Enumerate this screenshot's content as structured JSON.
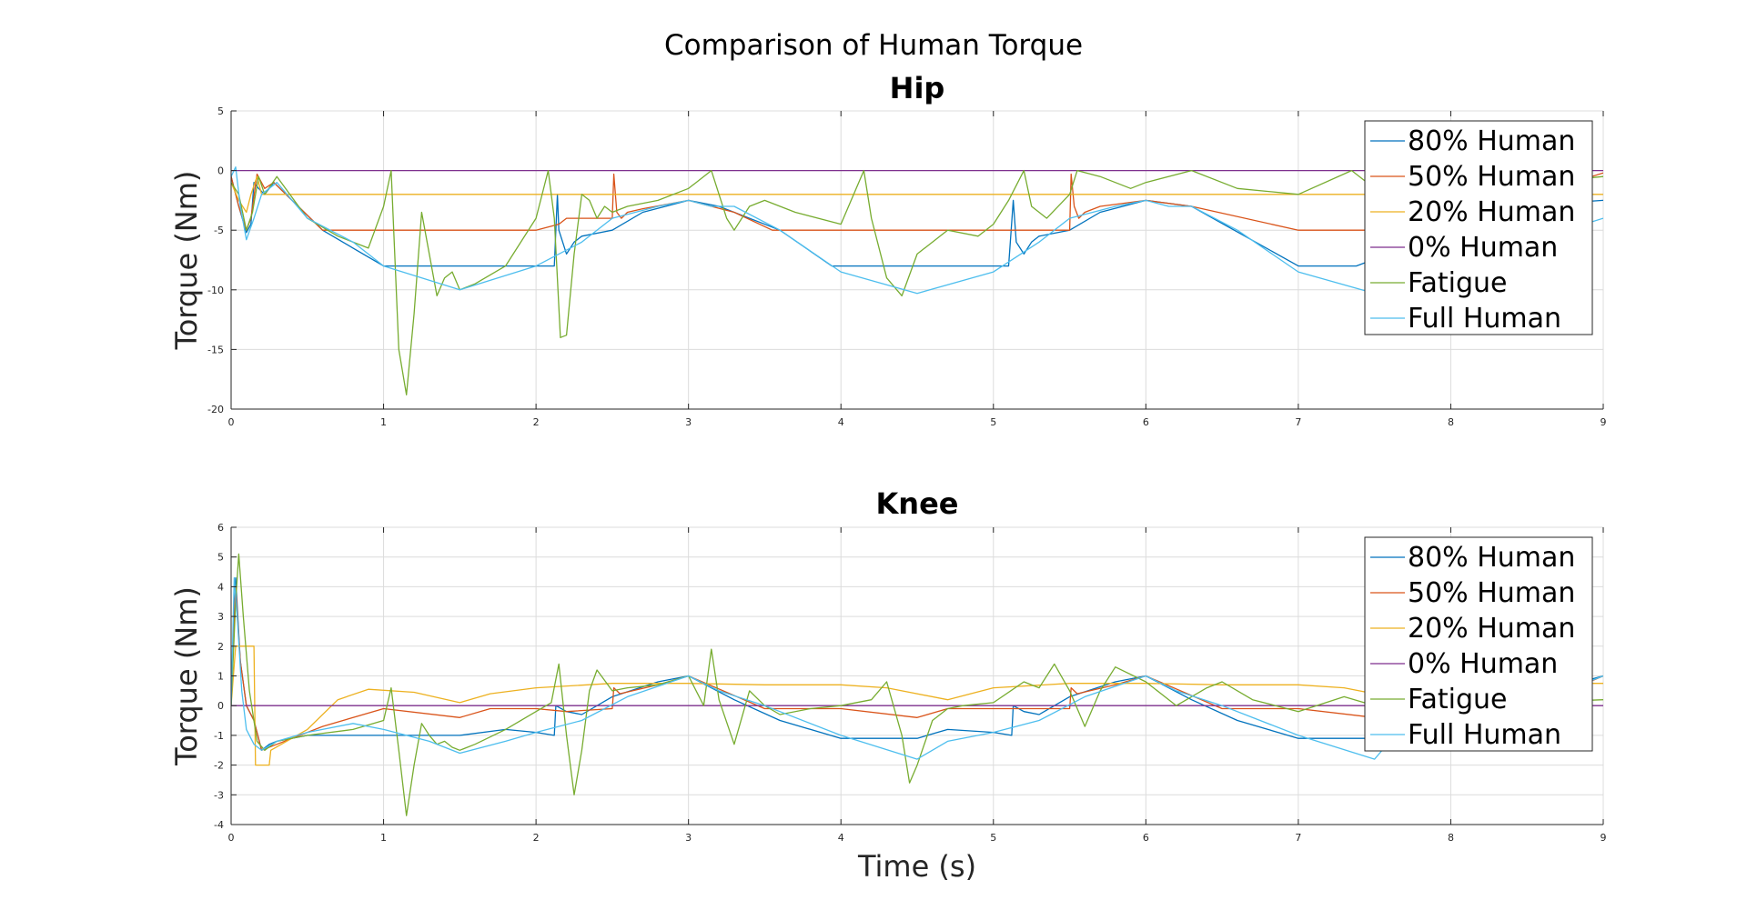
{
  "figure": {
    "suptitle": "Comparison of Human Torque",
    "colors": {
      "80% Human": "#0072BD",
      "50% Human": "#D95319",
      "20% Human": "#EDB120",
      "0% Human": "#7E2F8E",
      "Fatigue": "#77AC30",
      "Full Human": "#4DBEEE"
    }
  },
  "chart_data": [
    {
      "type": "line",
      "title": "Hip",
      "xlabel": "",
      "ylabel": "Torque (Nm)",
      "xlim": [
        0,
        9
      ],
      "ylim": [
        -20,
        5
      ],
      "xticks": [
        0,
        1,
        2,
        3,
        4,
        5,
        6,
        7,
        8,
        9
      ],
      "yticks": [
        -20,
        -15,
        -10,
        -5,
        0,
        5
      ],
      "grid": true,
      "legend_position": "top-right",
      "series": [
        {
          "name": "80% Human",
          "x": [
            0,
            0.05,
            0.1,
            0.13,
            0.15,
            0.18,
            0.22,
            0.28,
            0.4,
            0.6,
            0.8,
            1.0,
            1.5,
            2.0,
            2.12,
            2.14,
            2.15,
            2.2,
            2.25,
            2.3,
            2.5,
            2.7,
            3.0,
            3.2,
            3.6,
            3.94,
            4.5,
            5.1,
            5.13,
            5.15,
            5.2,
            5.25,
            5.3,
            5.5,
            5.7,
            6.0,
            6.3,
            7.0,
            7.38,
            8.0,
            8.4,
            9.0
          ],
          "y": [
            -0.5,
            -3,
            -5.2,
            -4.5,
            -1,
            -1.5,
            -2,
            -1,
            -2.5,
            -5,
            -6.5,
            -8,
            -8,
            -8,
            -8,
            -2,
            -5,
            -7,
            -6,
            -5.5,
            -5,
            -3.5,
            -2.5,
            -3,
            -5,
            -8,
            -8,
            -8,
            -2.5,
            -6,
            -7,
            -6,
            -5.5,
            -5,
            -3.5,
            -2.5,
            -3,
            -8,
            -8,
            -5,
            -3,
            -2.5
          ]
        },
        {
          "name": "50% Human",
          "x": [
            0,
            0.05,
            0.1,
            0.13,
            0.17,
            0.22,
            0.28,
            0.4,
            0.6,
            1.0,
            2.0,
            2.15,
            2.2,
            2.3,
            2.5,
            2.51,
            2.53,
            2.56,
            2.6,
            2.7,
            3.0,
            3.3,
            3.55,
            4.5,
            5.5,
            5.51,
            5.53,
            5.56,
            5.6,
            5.7,
            6.0,
            6.3,
            7.0,
            8.0,
            8.3,
            9.0
          ],
          "y": [
            -0.5,
            -3,
            -5,
            -4,
            -0.3,
            -1.5,
            -1,
            -2.5,
            -5,
            -5,
            -5,
            -4.5,
            -4,
            -4,
            -4,
            -0.3,
            -3.5,
            -4,
            -3.5,
            -3.2,
            -2.5,
            -3.5,
            -5,
            -5,
            -5,
            -0.3,
            -3,
            -4,
            -3.5,
            -3,
            -2.5,
            -3,
            -5,
            -5,
            -3,
            -0.2
          ]
        },
        {
          "name": "20% Human",
          "x": [
            0,
            0.05,
            0.1,
            0.13,
            0.17,
            0.2,
            0.3,
            9.0
          ],
          "y": [
            -1,
            -2.5,
            -3.5,
            -2,
            -0.5,
            -2,
            -2,
            -2
          ]
        },
        {
          "name": "0% Human",
          "x": [
            0,
            9.0
          ],
          "y": [
            0,
            0
          ]
        },
        {
          "name": "Fatigue",
          "x": [
            0,
            0.05,
            0.1,
            0.14,
            0.18,
            0.22,
            0.3,
            0.5,
            0.7,
            0.9,
            1.0,
            1.05,
            1.1,
            1.15,
            1.2,
            1.25,
            1.3,
            1.35,
            1.4,
            1.45,
            1.5,
            1.6,
            1.8,
            2.0,
            2.08,
            2.12,
            2.16,
            2.2,
            2.25,
            2.3,
            2.35,
            2.4,
            2.45,
            2.5,
            2.6,
            2.8,
            3.0,
            3.15,
            3.25,
            3.3,
            3.4,
            3.5,
            3.7,
            4.0,
            4.15,
            4.2,
            4.3,
            4.4,
            4.5,
            4.7,
            4.9,
            5.0,
            5.1,
            5.2,
            5.25,
            5.35,
            5.5,
            5.55,
            5.7,
            5.9,
            6.0,
            6.3,
            6.6,
            7.0,
            7.35,
            7.5,
            7.8,
            8.0,
            8.3,
            8.6,
            9.0
          ],
          "y": [
            -1,
            -2,
            -5,
            -3.5,
            -0.5,
            -2,
            -0.5,
            -4,
            -5.5,
            -6.5,
            -3,
            0,
            -15,
            -18.8,
            -12,
            -3.5,
            -7,
            -10.5,
            -9,
            -8.5,
            -10,
            -9.5,
            -8,
            -4,
            0,
            -4,
            -14,
            -13.8,
            -7,
            -2,
            -2.5,
            -4,
            -3,
            -3.5,
            -3,
            -2.5,
            -1.5,
            0,
            -4,
            -5,
            -3,
            -2.5,
            -3.5,
            -4.5,
            0,
            -4,
            -9,
            -10.5,
            -7,
            -5,
            -5.5,
            -4.5,
            -2.5,
            0,
            -3,
            -4,
            -2,
            0,
            -0.5,
            -1.5,
            -1,
            0,
            -1.5,
            -2,
            0,
            -1.5,
            -2,
            -1,
            -0.5,
            -1,
            -0.5
          ]
        },
        {
          "name": "Full Human",
          "x": [
            0,
            0.03,
            0.06,
            0.1,
            0.15,
            0.2,
            0.3,
            0.5,
            0.8,
            1.0,
            1.5,
            2.0,
            2.3,
            2.5,
            2.8,
            3.0,
            3.15,
            3.3,
            3.6,
            4.0,
            4.5,
            5.0,
            5.3,
            5.5,
            5.8,
            6.0,
            6.15,
            6.3,
            6.6,
            7.0,
            7.5,
            8.0,
            8.5,
            9.0
          ],
          "y": [
            -0.5,
            0.3,
            -3,
            -5.8,
            -4,
            -2,
            -1,
            -4,
            -6,
            -8,
            -10,
            -8,
            -6,
            -4,
            -3,
            -2.5,
            -3,
            -3,
            -5,
            -8.5,
            -10.3,
            -8.5,
            -6,
            -4,
            -3,
            -2.5,
            -3,
            -3,
            -5,
            -8.5,
            -10.3,
            -8.5,
            -6,
            -4
          ]
        }
      ]
    },
    {
      "type": "line",
      "title": "Knee",
      "xlabel": "Time (s)",
      "ylabel": "Torque (Nm)",
      "xlim": [
        0,
        9
      ],
      "ylim": [
        -4,
        6
      ],
      "xticks": [
        0,
        1,
        2,
        3,
        4,
        5,
        6,
        7,
        8,
        9
      ],
      "yticks": [
        -4,
        -3,
        -2,
        -1,
        0,
        1,
        2,
        3,
        4,
        5,
        6
      ],
      "grid": true,
      "legend_position": "top-right",
      "series": [
        {
          "name": "80% Human",
          "x": [
            0,
            0.03,
            0.06,
            0.1,
            0.15,
            0.2,
            0.25,
            0.3,
            0.5,
            1.0,
            1.5,
            1.8,
            2.0,
            2.12,
            2.13,
            2.2,
            2.3,
            2.5,
            2.8,
            3.0,
            3.3,
            3.6,
            4.0,
            4.5,
            4.7,
            5.0,
            5.12,
            5.13,
            5.2,
            5.3,
            5.5,
            5.8,
            6.0,
            6.3,
            6.6,
            7.0,
            7.5,
            8.0,
            8.5,
            9.0
          ],
          "y": [
            0,
            4.3,
            1.5,
            0,
            -0.5,
            -1.5,
            -1.3,
            -1.2,
            -1,
            -1,
            -1,
            -0.8,
            -0.9,
            -1,
            0,
            -0.2,
            -0.3,
            0.3,
            0.8,
            1,
            0.2,
            -0.5,
            -1.1,
            -1.1,
            -0.8,
            -0.9,
            -1,
            0,
            -0.2,
            -0.3,
            0.3,
            0.8,
            1,
            0.2,
            -0.5,
            -1.1,
            -1.1,
            -0.8,
            0.3,
            1
          ]
        },
        {
          "name": "50% Human",
          "x": [
            0,
            0.03,
            0.06,
            0.1,
            0.15,
            0.2,
            0.3,
            0.6,
            1.0,
            1.5,
            1.7,
            2.0,
            2.2,
            2.5,
            2.51,
            2.55,
            2.8,
            3.0,
            3.5,
            4.0,
            4.5,
            4.7,
            5.0,
            5.5,
            5.51,
            5.55,
            5.8,
            6.0,
            6.5,
            7.0,
            7.5,
            8.0,
            8.5,
            9.0
          ],
          "y": [
            0,
            4,
            1.5,
            0,
            -0.5,
            -1.5,
            -1.3,
            -0.7,
            -0.1,
            -0.4,
            -0.1,
            -0.1,
            -0.2,
            -0.1,
            0.6,
            0.4,
            0.7,
            1,
            -0.1,
            -0.1,
            -0.4,
            -0.1,
            -0.1,
            -0.1,
            0.6,
            0.4,
            0.7,
            1,
            -0.1,
            -0.1,
            -0.4,
            -0.1,
            -0.1,
            1
          ]
        },
        {
          "name": "20% Human",
          "x": [
            0,
            0.03,
            0.05,
            0.15,
            0.16,
            0.25,
            0.26,
            0.5,
            0.7,
            0.9,
            1.2,
            1.5,
            1.7,
            2.0,
            2.5,
            3.0,
            3.5,
            4.0,
            4.3,
            4.7,
            5.0,
            5.5,
            6.0,
            6.5,
            7.0,
            7.3,
            7.7,
            8.0,
            8.5,
            9.0
          ],
          "y": [
            0,
            2,
            2,
            2,
            -2,
            -2,
            -1.5,
            -0.8,
            0.2,
            0.55,
            0.45,
            0.1,
            0.4,
            0.6,
            0.75,
            0.75,
            0.7,
            0.7,
            0.6,
            0.2,
            0.6,
            0.75,
            0.75,
            0.7,
            0.7,
            0.6,
            0.2,
            0.6,
            0.75,
            0.75
          ]
        },
        {
          "name": "0% Human",
          "x": [
            0,
            9.0
          ],
          "y": [
            0,
            0
          ]
        },
        {
          "name": "Fatigue",
          "x": [
            0,
            0.03,
            0.05,
            0.08,
            0.12,
            0.17,
            0.22,
            0.3,
            0.5,
            0.8,
            1.0,
            1.05,
            1.1,
            1.15,
            1.2,
            1.25,
            1.3,
            1.35,
            1.4,
            1.45,
            1.5,
            1.6,
            1.8,
            2.0,
            2.1,
            2.15,
            2.2,
            2.25,
            2.3,
            2.35,
            2.4,
            2.5,
            2.6,
            2.8,
            3.0,
            3.1,
            3.15,
            3.2,
            3.3,
            3.4,
            3.5,
            3.6,
            3.8,
            4.0,
            4.2,
            4.3,
            4.4,
            4.45,
            4.5,
            4.6,
            4.7,
            4.8,
            5.0,
            5.2,
            5.3,
            5.4,
            5.5,
            5.6,
            5.7,
            5.8,
            6.0,
            6.2,
            6.4,
            6.5,
            6.7,
            7.0,
            7.3,
            7.5,
            7.7,
            8.0,
            8.3,
            8.5,
            9.0
          ],
          "y": [
            0,
            3.5,
            5.1,
            3,
            0.5,
            -1.2,
            -1.5,
            -1.2,
            -1,
            -0.8,
            -0.5,
            0.6,
            -1.5,
            -3.7,
            -2,
            -0.6,
            -1,
            -1.3,
            -1.2,
            -1.4,
            -1.5,
            -1.3,
            -0.8,
            -0.2,
            0.1,
            1.4,
            -1,
            -3,
            -1.5,
            0.5,
            1.2,
            0.5,
            0.6,
            0.7,
            1,
            0,
            1.9,
            0.2,
            -1.3,
            0.5,
            0,
            -0.3,
            -0.1,
            0,
            0.2,
            0.8,
            -1,
            -2.6,
            -2,
            -0.5,
            -0.1,
            0,
            0.1,
            0.8,
            0.6,
            1.4,
            0.5,
            -0.7,
            0.5,
            1.3,
            0.8,
            0,
            0.6,
            0.8,
            0.2,
            -0.2,
            0.3,
            0,
            0.2,
            0.5,
            0.3,
            0.1,
            0.2
          ]
        },
        {
          "name": "Full Human",
          "x": [
            0,
            0.02,
            0.04,
            0.07,
            0.1,
            0.15,
            0.2,
            0.3,
            0.5,
            0.8,
            1.0,
            1.3,
            1.5,
            1.8,
            2.0,
            2.3,
            2.6,
            3.0,
            3.2,
            3.5,
            4.0,
            4.5,
            4.7,
            5.0,
            5.3,
            5.6,
            6.0,
            6.2,
            6.5,
            7.0,
            7.5,
            7.6,
            8.0,
            8.5,
            9.0
          ],
          "y": [
            0,
            4.3,
            3,
            0.5,
            -0.8,
            -1.3,
            -1.5,
            -1.2,
            -0.9,
            -0.6,
            -0.8,
            -1.2,
            -1.6,
            -1.2,
            -0.9,
            -0.5,
            0.3,
            1,
            0.5,
            0,
            -1,
            -1.8,
            -1.2,
            -0.9,
            -0.5,
            0.3,
            1,
            0.5,
            0,
            -1,
            -1.8,
            -1.2,
            -0.9,
            0,
            1
          ]
        }
      ]
    }
  ]
}
